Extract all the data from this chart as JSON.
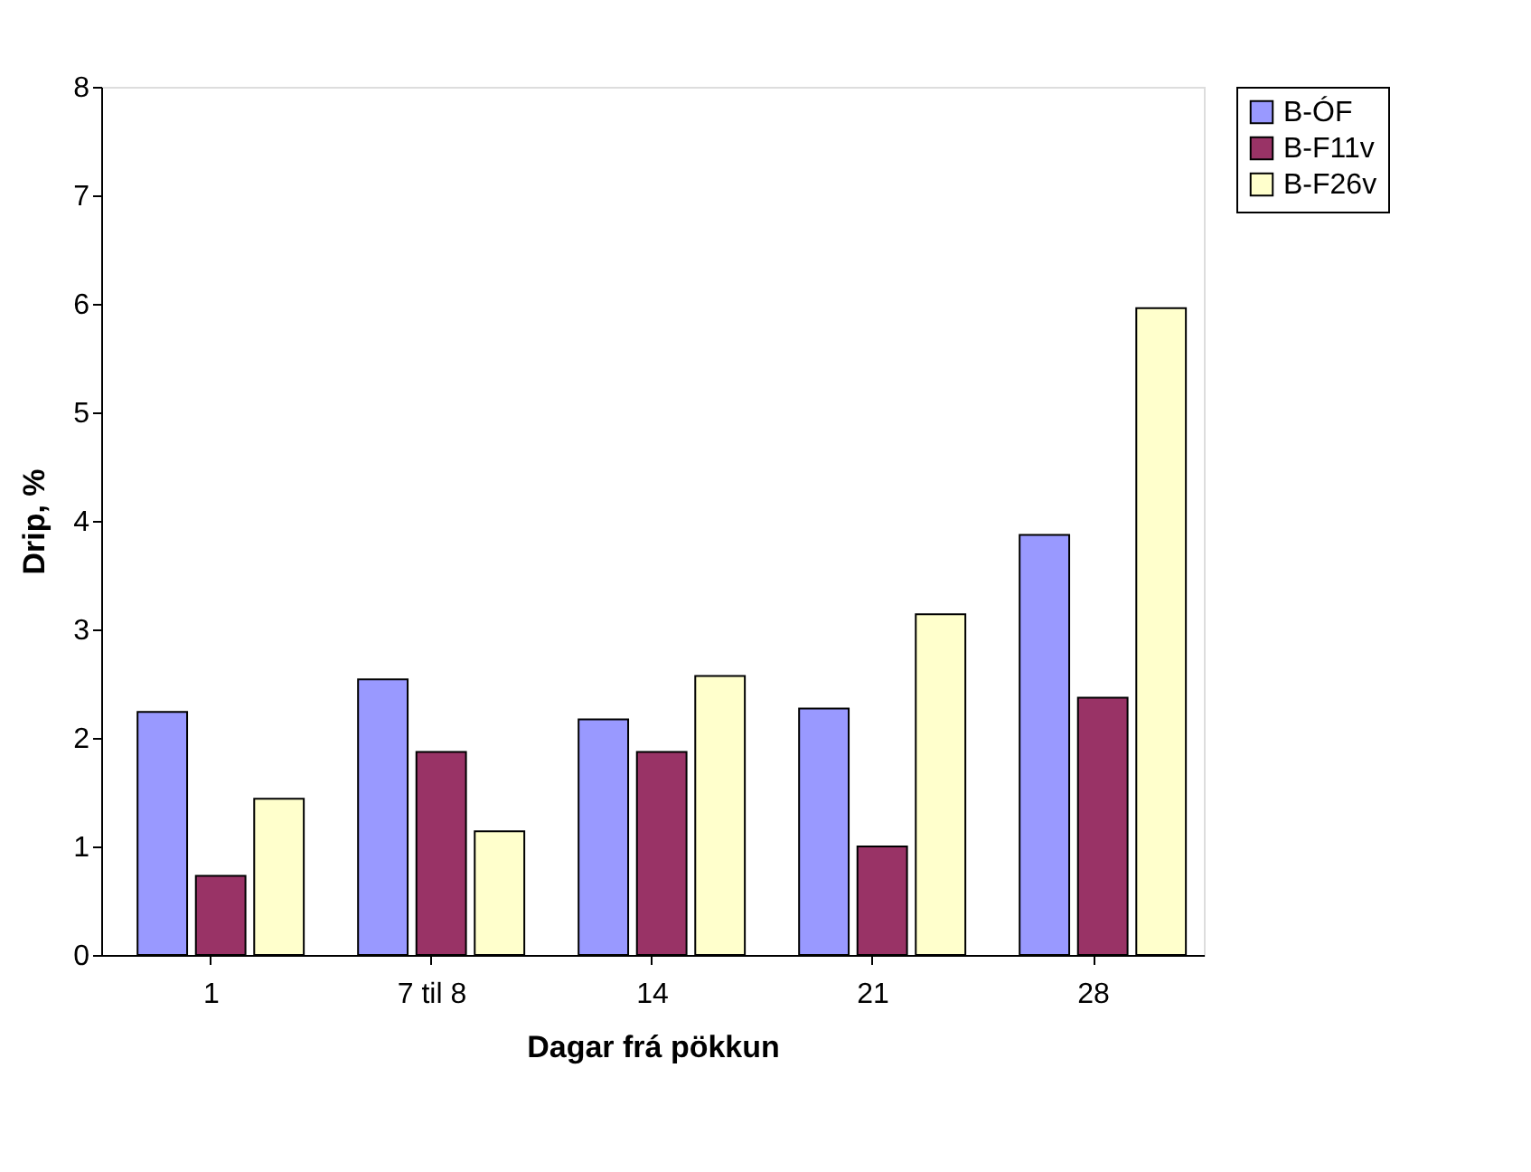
{
  "chart_data": {
    "type": "bar",
    "xlabel": "Dagar frá pökkun",
    "ylabel": "Drip, %",
    "categories": [
      "1",
      "7 til 8",
      "14",
      "21",
      "28"
    ],
    "series": [
      {
        "name": "B-ÓF",
        "color": "#9999ff",
        "values": [
          2.24,
          2.54,
          2.17,
          2.27,
          3.87
        ]
      },
      {
        "name": "B-F11v",
        "color": "#993366",
        "values": [
          0.73,
          1.87,
          1.87,
          1.0,
          2.37
        ]
      },
      {
        "name": "B-F26v",
        "color": "#ffffcc",
        "values": [
          1.44,
          1.14,
          2.57,
          3.14,
          5.96
        ]
      }
    ],
    "ylim": [
      0,
      8
    ],
    "yticks": [
      0,
      1,
      2,
      3,
      4,
      5,
      6,
      7,
      8
    ],
    "grid": false,
    "legend": "right"
  }
}
